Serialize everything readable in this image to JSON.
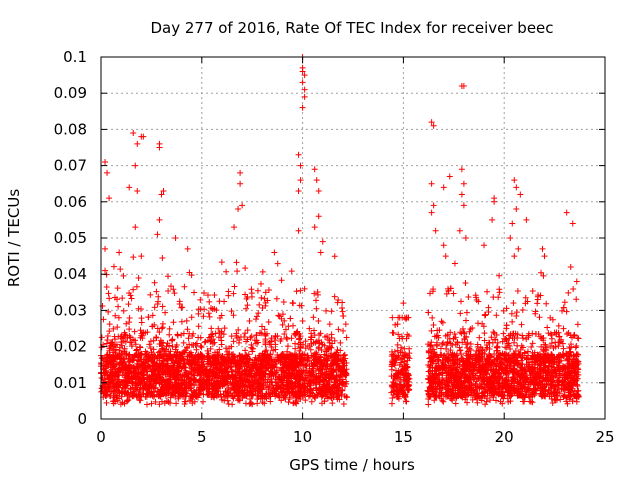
{
  "chart_data": {
    "type": "scatter",
    "title": "Day 277 of 2016, Rate Of TEC Index for receiver beec",
    "xlabel": "GPS time / hours",
    "ylabel": "ROTI / TECUs",
    "xlim": [
      0,
      25
    ],
    "ylim": [
      0,
      0.1
    ],
    "xticks": [
      0,
      5,
      10,
      15,
      20,
      25
    ],
    "xtick_labels": [
      "0",
      "5",
      "10",
      "15",
      "20",
      "25"
    ],
    "yticks": [
      0,
      0.01,
      0.02,
      0.03,
      0.04,
      0.05,
      0.06,
      0.07,
      0.08,
      0.09,
      0.1
    ],
    "ytick_labels": [
      "0",
      "0.01",
      "0.02",
      "0.03",
      "0.04",
      "0.05",
      "0.06",
      "0.07",
      "0.08",
      "0.09",
      "0.1"
    ],
    "grid": true,
    "marker": "+",
    "color": "#ff0000",
    "coverage_hours": [
      [
        0.0,
        12.2
      ],
      [
        14.4,
        15.3
      ],
      [
        16.2,
        23.7
      ]
    ],
    "highlight_points": [
      {
        "x": 0.2,
        "y": 0.071
      },
      {
        "x": 0.3,
        "y": 0.068
      },
      {
        "x": 0.4,
        "y": 0.061
      },
      {
        "x": 0.2,
        "y": 0.047
      },
      {
        "x": 0.2,
        "y": 0.041
      },
      {
        "x": 0.9,
        "y": 0.046
      },
      {
        "x": 1.4,
        "y": 0.064
      },
      {
        "x": 1.6,
        "y": 0.079
      },
      {
        "x": 1.7,
        "y": 0.07
      },
      {
        "x": 1.8,
        "y": 0.076
      },
      {
        "x": 2.0,
        "y": 0.078
      },
      {
        "x": 2.1,
        "y": 0.078
      },
      {
        "x": 1.8,
        "y": 0.063
      },
      {
        "x": 1.7,
        "y": 0.053
      },
      {
        "x": 2.0,
        "y": 0.045
      },
      {
        "x": 2.9,
        "y": 0.076
      },
      {
        "x": 2.9,
        "y": 0.075
      },
      {
        "x": 3.0,
        "y": 0.062
      },
      {
        "x": 3.1,
        "y": 0.063
      },
      {
        "x": 2.8,
        "y": 0.051
      },
      {
        "x": 2.9,
        "y": 0.055
      },
      {
        "x": 3.7,
        "y": 0.05
      },
      {
        "x": 4.3,
        "y": 0.047
      },
      {
        "x": 6.6,
        "y": 0.053
      },
      {
        "x": 6.9,
        "y": 0.068
      },
      {
        "x": 6.9,
        "y": 0.065
      },
      {
        "x": 7.0,
        "y": 0.059
      },
      {
        "x": 6.8,
        "y": 0.058
      },
      {
        "x": 8.6,
        "y": 0.046
      },
      {
        "x": 9.8,
        "y": 0.073
      },
      {
        "x": 9.9,
        "y": 0.07
      },
      {
        "x": 9.8,
        "y": 0.063
      },
      {
        "x": 9.8,
        "y": 0.052
      },
      {
        "x": 9.9,
        "y": 0.066
      },
      {
        "x": 10.0,
        "y": 0.1
      },
      {
        "x": 10.0,
        "y": 0.097
      },
      {
        "x": 10.0,
        "y": 0.096
      },
      {
        "x": 10.1,
        "y": 0.095
      },
      {
        "x": 10.0,
        "y": 0.093
      },
      {
        "x": 10.1,
        "y": 0.091
      },
      {
        "x": 10.1,
        "y": 0.089
      },
      {
        "x": 10.0,
        "y": 0.086
      },
      {
        "x": 10.6,
        "y": 0.069
      },
      {
        "x": 10.7,
        "y": 0.066
      },
      {
        "x": 10.8,
        "y": 0.063
      },
      {
        "x": 10.8,
        "y": 0.056
      },
      {
        "x": 10.6,
        "y": 0.053
      },
      {
        "x": 11.0,
        "y": 0.049
      },
      {
        "x": 10.9,
        "y": 0.046
      },
      {
        "x": 15.0,
        "y": 0.032
      },
      {
        "x": 16.4,
        "y": 0.082
      },
      {
        "x": 16.5,
        "y": 0.081
      },
      {
        "x": 16.4,
        "y": 0.065
      },
      {
        "x": 16.5,
        "y": 0.059
      },
      {
        "x": 16.4,
        "y": 0.057
      },
      {
        "x": 16.6,
        "y": 0.052
      },
      {
        "x": 17.0,
        "y": 0.064
      },
      {
        "x": 17.3,
        "y": 0.067
      },
      {
        "x": 17.0,
        "y": 0.048
      },
      {
        "x": 17.1,
        "y": 0.045
      },
      {
        "x": 17.9,
        "y": 0.092
      },
      {
        "x": 18.0,
        "y": 0.092
      },
      {
        "x": 17.9,
        "y": 0.069
      },
      {
        "x": 18.0,
        "y": 0.065
      },
      {
        "x": 17.9,
        "y": 0.062
      },
      {
        "x": 18.0,
        "y": 0.059
      },
      {
        "x": 17.8,
        "y": 0.052
      },
      {
        "x": 18.1,
        "y": 0.05
      },
      {
        "x": 19.5,
        "y": 0.06
      },
      {
        "x": 19.5,
        "y": 0.061
      },
      {
        "x": 19.4,
        "y": 0.055
      },
      {
        "x": 19.0,
        "y": 0.048
      },
      {
        "x": 20.5,
        "y": 0.066
      },
      {
        "x": 20.6,
        "y": 0.064
      },
      {
        "x": 20.6,
        "y": 0.058
      },
      {
        "x": 20.8,
        "y": 0.062
      },
      {
        "x": 20.4,
        "y": 0.054
      },
      {
        "x": 20.3,
        "y": 0.05
      },
      {
        "x": 20.5,
        "y": 0.045
      },
      {
        "x": 20.7,
        "y": 0.047
      },
      {
        "x": 21.1,
        "y": 0.055
      },
      {
        "x": 21.9,
        "y": 0.047
      },
      {
        "x": 22.0,
        "y": 0.045
      },
      {
        "x": 23.1,
        "y": 0.057
      },
      {
        "x": 23.4,
        "y": 0.054
      },
      {
        "x": 23.3,
        "y": 0.042
      },
      {
        "x": 23.6,
        "y": 0.038
      }
    ]
  }
}
